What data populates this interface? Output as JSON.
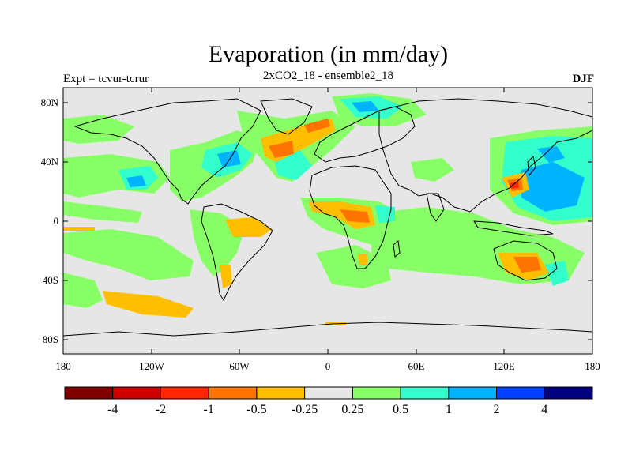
{
  "title": "Evaporation (in mm/day)",
  "subtitle": "2xCO2_18 - ensemble2_18",
  "left_label": "Expt = tcvur-tcrur",
  "right_label": "DJF",
  "axes": {
    "y_ticks": [
      "80N",
      "40N",
      "0",
      "40S",
      "80S"
    ],
    "x_ticks": [
      "180",
      "120W",
      "60W",
      "0",
      "60E",
      "120E",
      "180"
    ]
  },
  "colorbar": {
    "colors": [
      "#800000",
      "#cc0000",
      "#ff2600",
      "#ff7300",
      "#ffbf00",
      "#e6e6e6",
      "#88ff66",
      "#33ffcc",
      "#00b3ff",
      "#0040ff",
      "#000080"
    ],
    "labels": [
      "-4",
      "-2",
      "-1",
      "-0.5",
      "-0.25",
      "0.25",
      "0.5",
      "1",
      "2",
      "4"
    ]
  },
  "colors": {
    "background": "#e6e6e6",
    "land_outline": "#000000"
  }
}
